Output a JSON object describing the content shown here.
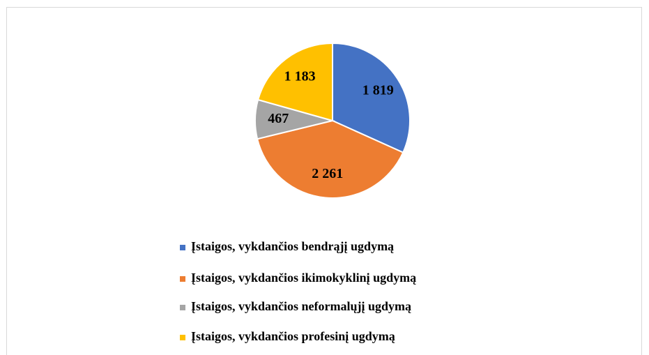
{
  "chart_data": {
    "type": "pie",
    "categories": [
      "Įstaigos, vykdančios bendrąjį ugdymą",
      "Įstaigos, vykdančios ikimokyklinį ugdymą",
      "Įstaigos, vykdančios neformalųjį ugdymą",
      "Įstaigos, vykdančios profesinį ugdymą"
    ],
    "values": [
      1819,
      2261,
      467,
      1183
    ],
    "value_labels": [
      "1 819",
      "2 261",
      "467",
      "1 183"
    ],
    "colors": [
      "#4472c4",
      "#ed7d31",
      "#a5a5a5",
      "#ffc000"
    ],
    "legend": "bottom"
  }
}
